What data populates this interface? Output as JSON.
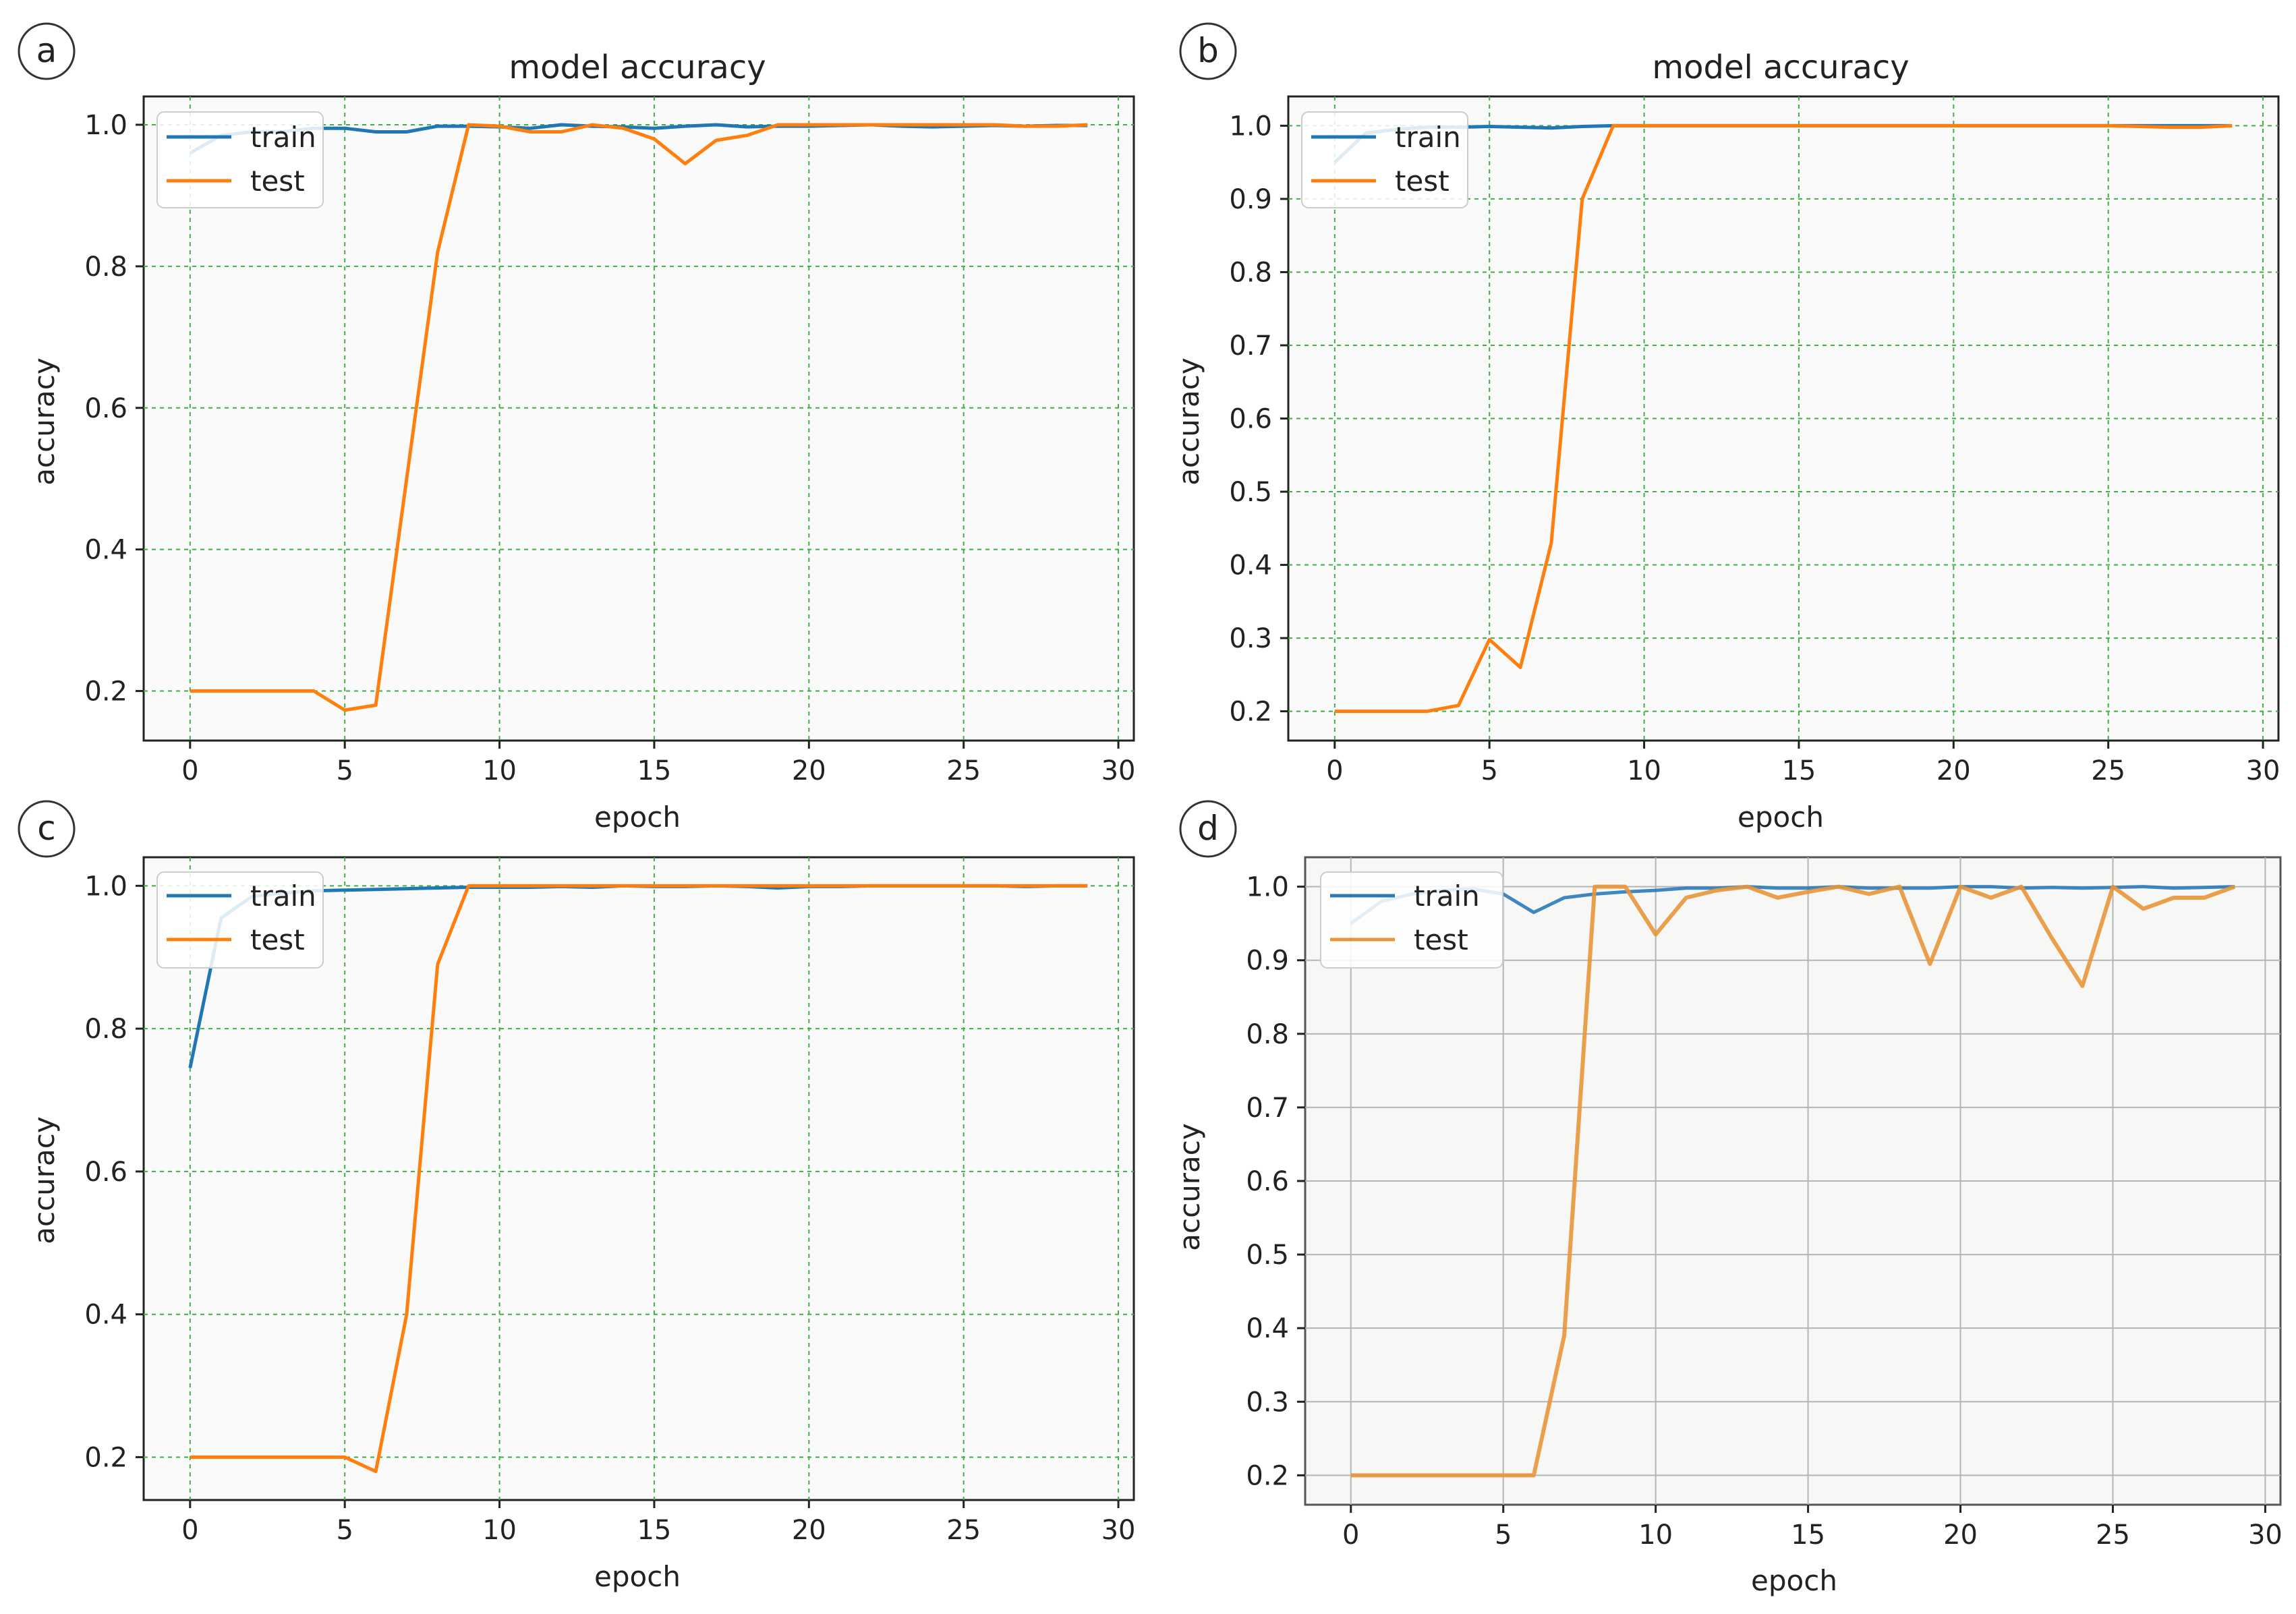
{
  "chart_data": [
    {
      "panel_label": "a",
      "type": "line",
      "title": "model accuracy",
      "xlabel": "epoch",
      "ylabel": "accuracy",
      "xlim": [
        -1.5,
        30.5
      ],
      "ylim": [
        0.13,
        1.04
      ],
      "xticks": [
        0,
        5,
        10,
        15,
        20,
        25,
        30
      ],
      "yticks": [
        0.2,
        0.4,
        0.6,
        0.8,
        1.0
      ],
      "ytick_labels": [
        "0.2",
        "0.4",
        "0.6",
        "0.8",
        "1.0"
      ],
      "legend": [
        "train",
        "test"
      ],
      "legend_position": "top-left",
      "grid": true,
      "series": [
        {
          "name": "train",
          "color": "#1f77b4",
          "x": [
            0,
            1,
            2,
            3,
            4,
            5,
            6,
            7,
            8,
            9,
            10,
            11,
            12,
            13,
            14,
            15,
            16,
            17,
            18,
            19,
            20,
            21,
            22,
            23,
            24,
            25,
            26,
            27,
            28,
            29
          ],
          "values": [
            0.96,
            0.985,
            0.99,
            0.99,
            0.995,
            0.995,
            0.99,
            0.99,
            0.998,
            0.998,
            0.997,
            0.995,
            1.0,
            0.998,
            0.997,
            0.995,
            0.998,
            1.0,
            0.997,
            0.998,
            0.998,
            0.999,
            1.0,
            0.998,
            0.997,
            0.998,
            0.999,
            0.998,
            0.999,
            0.999
          ]
        },
        {
          "name": "test",
          "color": "#ff7f0e",
          "x": [
            0,
            1,
            2,
            3,
            4,
            5,
            6,
            7,
            8,
            9,
            10,
            11,
            12,
            13,
            14,
            15,
            16,
            17,
            18,
            19,
            20,
            21,
            22,
            23,
            24,
            25,
            26,
            27,
            28,
            29
          ],
          "values": [
            0.2,
            0.2,
            0.2,
            0.2,
            0.2,
            0.173,
            0.18,
            0.5,
            0.82,
            1.0,
            0.998,
            0.99,
            0.99,
            1.0,
            0.995,
            0.98,
            0.945,
            0.978,
            0.985,
            1.0,
            1.0,
            1.0,
            1.0,
            1.0,
            1.0,
            1.0,
            1.0,
            0.998,
            0.998,
            1.0
          ]
        }
      ]
    },
    {
      "panel_label": "b",
      "type": "line",
      "title": "model accuracy",
      "xlabel": "epoch",
      "ylabel": "accuracy",
      "xlim": [
        -1.5,
        30.5
      ],
      "ylim": [
        0.16,
        1.04
      ],
      "xticks": [
        0,
        5,
        10,
        15,
        20,
        25,
        30
      ],
      "yticks": [
        0.2,
        0.3,
        0.4,
        0.5,
        0.6,
        0.7,
        0.8,
        0.9,
        1.0
      ],
      "ytick_labels": [
        "0.2",
        "0.3",
        "0.4",
        "0.5",
        "0.6",
        "0.7",
        "0.8",
        "0.9",
        "1.0"
      ],
      "legend": [
        "train",
        "test"
      ],
      "legend_position": "top-left",
      "grid": true,
      "series": [
        {
          "name": "train",
          "color": "#1f77b4",
          "x": [
            0,
            1,
            2,
            3,
            4,
            5,
            6,
            7,
            8,
            9,
            10,
            11,
            12,
            13,
            14,
            15,
            16,
            17,
            18,
            19,
            20,
            21,
            22,
            23,
            24,
            25,
            26,
            27,
            28,
            29
          ],
          "values": [
            0.95,
            0.99,
            0.995,
            0.998,
            0.998,
            0.999,
            0.998,
            0.997,
            0.999,
            1.0,
            1.0,
            1.0,
            1.0,
            1.0,
            1.0,
            1.0,
            1.0,
            1.0,
            1.0,
            1.0,
            1.0,
            1.0,
            1.0,
            1.0,
            1.0,
            1.0,
            1.0,
            1.0,
            1.0,
            1.0
          ]
        },
        {
          "name": "test",
          "color": "#ff7f0e",
          "x": [
            0,
            1,
            2,
            3,
            4,
            5,
            6,
            7,
            8,
            9,
            10,
            11,
            12,
            13,
            14,
            15,
            16,
            17,
            18,
            19,
            20,
            21,
            22,
            23,
            24,
            25,
            26,
            27,
            28,
            29
          ],
          "values": [
            0.2,
            0.2,
            0.2,
            0.2,
            0.208,
            0.298,
            0.26,
            0.43,
            0.9,
            1.0,
            1.0,
            1.0,
            1.0,
            1.0,
            1.0,
            1.0,
            1.0,
            1.0,
            1.0,
            1.0,
            1.0,
            1.0,
            1.0,
            1.0,
            1.0,
            1.0,
            0.999,
            0.998,
            0.998,
            1.0
          ]
        }
      ]
    },
    {
      "panel_label": "c",
      "type": "line",
      "title": "",
      "xlabel": "epoch",
      "ylabel": "accuracy",
      "xlim": [
        -1.5,
        30.5
      ],
      "ylim": [
        0.14,
        1.04
      ],
      "xticks": [
        0,
        5,
        10,
        15,
        20,
        25,
        30
      ],
      "yticks": [
        0.2,
        0.4,
        0.6,
        0.8,
        1.0
      ],
      "ytick_labels": [
        "0.2",
        "0.4",
        "0.6",
        "0.8",
        "1.0"
      ],
      "legend": [
        "train",
        "test"
      ],
      "legend_position": "top-left",
      "grid": true,
      "series": [
        {
          "name": "train",
          "color": "#1f77b4",
          "x": [
            0,
            1,
            2,
            3,
            4,
            5,
            6,
            7,
            8,
            9,
            10,
            11,
            12,
            13,
            14,
            15,
            16,
            17,
            18,
            19,
            20,
            21,
            22,
            23,
            24,
            25,
            26,
            27,
            28,
            29
          ],
          "values": [
            0.745,
            0.955,
            0.985,
            0.99,
            0.993,
            0.994,
            0.995,
            0.996,
            0.997,
            0.998,
            0.998,
            0.998,
            0.999,
            0.998,
            1.0,
            0.999,
            0.999,
            1.0,
            0.999,
            0.997,
            0.999,
            0.999,
            1.0,
            1.0,
            1.0,
            1.0,
            1.0,
            0.999,
            1.0,
            1.0
          ]
        },
        {
          "name": "test",
          "color": "#ff7f0e",
          "x": [
            0,
            1,
            2,
            3,
            4,
            5,
            6,
            7,
            8,
            9,
            10,
            11,
            12,
            13,
            14,
            15,
            16,
            17,
            18,
            19,
            20,
            21,
            22,
            23,
            24,
            25,
            26,
            27,
            28,
            29
          ],
          "values": [
            0.2,
            0.2,
            0.2,
            0.2,
            0.2,
            0.2,
            0.18,
            0.4,
            0.89,
            1.0,
            1.0,
            1.0,
            1.0,
            1.0,
            1.0,
            1.0,
            1.0,
            1.0,
            1.0,
            1.0,
            1.0,
            1.0,
            1.0,
            1.0,
            1.0,
            1.0,
            1.0,
            1.0,
            1.0,
            1.0
          ]
        }
      ]
    },
    {
      "panel_label": "d",
      "type": "line",
      "title": "",
      "xlabel": "epoch",
      "ylabel": "accuracy",
      "xlim": [
        -1.5,
        30.5
      ],
      "ylim": [
        0.16,
        1.04
      ],
      "xticks": [
        0,
        5,
        10,
        15,
        20,
        25,
        30
      ],
      "yticks": [
        0.2,
        0.3,
        0.4,
        0.5,
        0.6,
        0.7,
        0.8,
        0.9,
        1.0
      ],
      "ytick_labels": [
        "0.2",
        "0.3",
        "0.4",
        "0.5",
        "0.6",
        "0.7",
        "0.8",
        "0.9",
        "1.0"
      ],
      "legend": [
        "train",
        "test"
      ],
      "legend_position": "top-left",
      "grid": true,
      "series": [
        {
          "name": "train",
          "color": "#1f77b4",
          "x": [
            0,
            1,
            2,
            3,
            4,
            5,
            6,
            7,
            8,
            9,
            10,
            11,
            12,
            13,
            14,
            15,
            16,
            17,
            18,
            19,
            20,
            21,
            22,
            23,
            24,
            25,
            26,
            27,
            28,
            29
          ],
          "values": [
            0.95,
            0.98,
            0.99,
            0.995,
            0.997,
            0.99,
            0.965,
            0.985,
            0.99,
            0.993,
            0.995,
            0.998,
            0.998,
            1.0,
            0.998,
            0.998,
            1.0,
            0.998,
            0.998,
            0.998,
            1.0,
            1.0,
            0.998,
            0.999,
            0.998,
            0.999,
            1.0,
            0.998,
            0.999,
            1.0
          ]
        },
        {
          "name": "test",
          "color": "#ff7f0e",
          "x": [
            0,
            1,
            2,
            3,
            4,
            5,
            6,
            7,
            8,
            9,
            10,
            11,
            12,
            13,
            14,
            15,
            16,
            17,
            18,
            19,
            20,
            21,
            22,
            23,
            24,
            25,
            26,
            27,
            28,
            29
          ],
          "values": [
            0.2,
            0.2,
            0.2,
            0.2,
            0.2,
            0.2,
            0.2,
            0.39,
            1.0,
            1.0,
            0.935,
            0.985,
            0.995,
            1.0,
            0.985,
            0.993,
            1.0,
            0.99,
            1.0,
            0.895,
            1.0,
            0.985,
            1.0,
            0.93,
            0.865,
            1.0,
            0.97,
            0.985,
            0.985,
            1.0
          ]
        }
      ]
    }
  ]
}
